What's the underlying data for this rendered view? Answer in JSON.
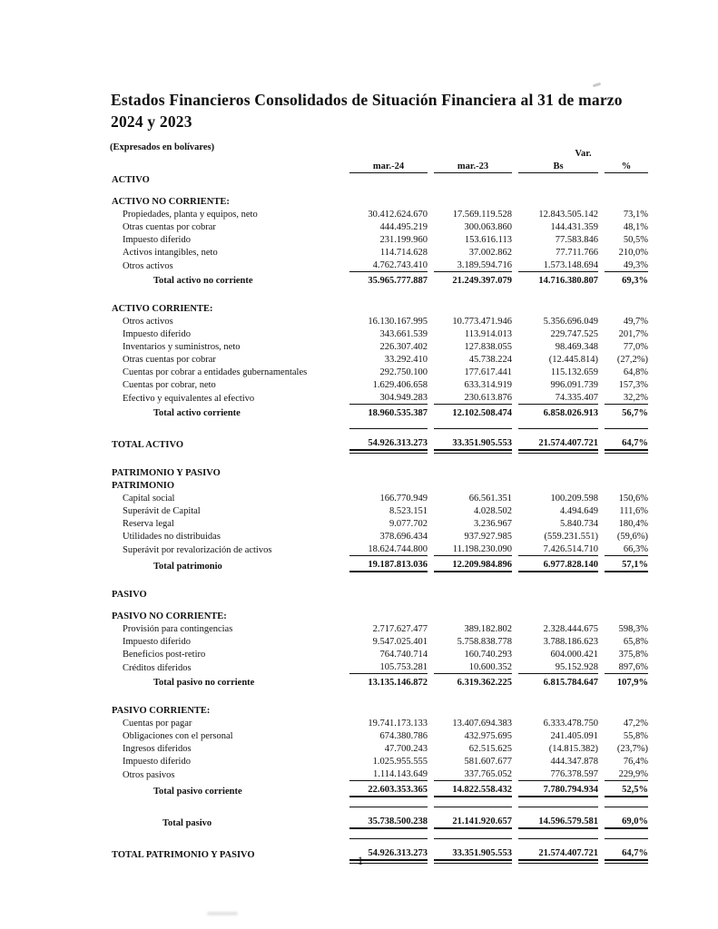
{
  "document": {
    "title": "Estados Financieros Consolidados de Situación Financiera al 31 de marzo 2024 y 2023",
    "subtitle": "(Expresados en bolívares)",
    "page_number": "1"
  },
  "colors": {
    "text": "#111111",
    "background": "#ffffff"
  },
  "table": {
    "var_label": "Var.",
    "columns": [
      "mar.-24",
      "mar.-23",
      "Bs",
      "%"
    ],
    "rows": [
      {
        "style": "section",
        "label": "ACTIVO"
      },
      {
        "style": "spacer"
      },
      {
        "style": "section",
        "label": "ACTIVO NO CORRIENTE:"
      },
      {
        "style": "item",
        "label": "Propiedades, planta y equipos, neto",
        "values": [
          "30.412.624.670",
          "17.569.119.528",
          "12.843.505.142",
          "73,1%"
        ]
      },
      {
        "style": "item",
        "label": "Otras cuentas por cobrar",
        "values": [
          "444.495.219",
          "300.063.860",
          "144.431.359",
          "48,1%"
        ]
      },
      {
        "style": "item",
        "label": "Impuesto diferido",
        "values": [
          "231.199.960",
          "153.616.113",
          "77.583.846",
          "50,5%"
        ]
      },
      {
        "style": "item",
        "label": "Activos intangibles, neto",
        "values": [
          "114.714.628",
          "37.002.862",
          "77.711.766",
          "210,0%"
        ]
      },
      {
        "style": "item_last",
        "label": "Otros activos",
        "values": [
          "4.762.743.410",
          "3.189.594.716",
          "1.573.148.694",
          "49,3%"
        ]
      },
      {
        "style": "subtotal",
        "label": "Total activo no corriente",
        "values": [
          "35.965.777.887",
          "21.249.397.079",
          "14.716.380.807",
          "69,3%"
        ]
      },
      {
        "style": "spacer_lg"
      },
      {
        "style": "section",
        "label": "ACTIVO CORRIENTE:"
      },
      {
        "style": "item",
        "label": "Otros activos",
        "values": [
          "16.130.167.995",
          "10.773.471.946",
          "5.356.696.049",
          "49,7%"
        ]
      },
      {
        "style": "item",
        "label": "Impuesto diferido",
        "values": [
          "343.661.539",
          "113.914.013",
          "229.747.525",
          "201,7%"
        ]
      },
      {
        "style": "item",
        "label": "Inventarios y suministros, neto",
        "values": [
          "226.307.402",
          "127.838.055",
          "98.469.348",
          "77,0%"
        ]
      },
      {
        "style": "item",
        "label": "Otras cuentas por cobrar",
        "values": [
          "33.292.410",
          "45.738.224",
          "(12.445.814)",
          "(27,2%)"
        ]
      },
      {
        "style": "item",
        "label": "Cuentas por cobrar a entidades gubernamentales",
        "values": [
          "292.750.100",
          "177.617.441",
          "115.132.659",
          "64,8%"
        ]
      },
      {
        "style": "item",
        "label": "Cuentas por cobrar, neto",
        "values": [
          "1.629.406.658",
          "633.314.919",
          "996.091.739",
          "157,3%"
        ]
      },
      {
        "style": "item_last",
        "label": "Efectivo y equivalentes al efectivo",
        "values": [
          "304.949.283",
          "230.613.876",
          "74.335.407",
          "32,2%"
        ]
      },
      {
        "style": "subtotal",
        "label": "Total activo corriente",
        "values": [
          "18.960.535.387",
          "12.102.508.474",
          "6.858.026.913",
          "56,7%"
        ]
      },
      {
        "style": "spacer"
      },
      {
        "style": "grand_total",
        "label": "TOTAL ACTIVO",
        "values": [
          "54.926.313.273",
          "33.351.905.553",
          "21.574.407.721",
          "64,7%"
        ]
      },
      {
        "style": "spacer_lg"
      },
      {
        "style": "section",
        "label": "PATRIMONIO Y PASIVO"
      },
      {
        "style": "section",
        "label": "PATRIMONIO"
      },
      {
        "style": "item",
        "label": "Capital social",
        "values": [
          "166.770.949",
          "66.561.351",
          "100.209.598",
          "150,6%"
        ]
      },
      {
        "style": "item",
        "label": "Superávit de Capital",
        "values": [
          "8.523.151",
          "4.028.502",
          "4.494.649",
          "111,6%"
        ]
      },
      {
        "style": "item",
        "label": "Reserva legal",
        "values": [
          "9.077.702",
          "3.236.967",
          "5.840.734",
          "180,4%"
        ]
      },
      {
        "style": "item",
        "label": "Utilidades no distribuidas",
        "values": [
          "378.696.434",
          "937.927.985",
          "(559.231.551)",
          "(59,6%)"
        ]
      },
      {
        "style": "item_last",
        "label": "Superávit por revalorización de activos",
        "values": [
          "18.624.744.800",
          "11.198.230.090",
          "7.426.514.710",
          "66,3%"
        ]
      },
      {
        "style": "subtotal_thick",
        "label": "Total patrimonio",
        "values": [
          "19.187.813.036",
          "12.209.984.896",
          "6.977.828.140",
          "57,1%"
        ]
      },
      {
        "style": "spacer_lg"
      },
      {
        "style": "section",
        "label": "PASIVO"
      },
      {
        "style": "spacer"
      },
      {
        "style": "section",
        "label": "PASIVO NO CORRIENTE:"
      },
      {
        "style": "item",
        "label": "Provisión para contingencias",
        "values": [
          "2.717.627.477",
          "389.182.802",
          "2.328.444.675",
          "598,3%"
        ]
      },
      {
        "style": "item",
        "label": "Impuesto diferido",
        "values": [
          "9.547.025.401",
          "5.758.838.778",
          "3.788.186.623",
          "65,8%"
        ]
      },
      {
        "style": "item",
        "label": "Beneficios post-retiro",
        "values": [
          "764.740.714",
          "160.740.293",
          "604.000.421",
          "375,8%"
        ]
      },
      {
        "style": "item_last",
        "label": "Créditos diferidos",
        "values": [
          "105.753.281",
          "10.600.352",
          "95.152.928",
          "897,6%"
        ]
      },
      {
        "style": "subtotal",
        "label": "Total pasivo no corriente",
        "values": [
          "13.135.146.872",
          "6.319.362.225",
          "6.815.784.647",
          "107,9%"
        ]
      },
      {
        "style": "spacer_lg"
      },
      {
        "style": "section",
        "label": "PASIVO CORRIENTE:"
      },
      {
        "style": "item",
        "label": "Cuentas por pagar",
        "values": [
          "19.741.173.133",
          "13.407.694.383",
          "6.333.478.750",
          "47,2%"
        ]
      },
      {
        "style": "item",
        "label": "Obligaciones con el personal",
        "values": [
          "674.380.786",
          "432.975.695",
          "241.405.091",
          "55,8%"
        ]
      },
      {
        "style": "item",
        "label": "Ingresos diferidos",
        "values": [
          "47.700.243",
          "62.515.625",
          "(14.815.382)",
          "(23,7%)"
        ]
      },
      {
        "style": "item",
        "label": "Impuesto diferido",
        "values": [
          "1.025.955.555",
          "581.607.677",
          "444.347.878",
          "76,4%"
        ]
      },
      {
        "style": "item_last",
        "label": "Otros pasivos",
        "values": [
          "1.114.143.649",
          "337.765.052",
          "776.378.597",
          "229,9%"
        ]
      },
      {
        "style": "subtotal_thick",
        "label": "Total pasivo corriente",
        "values": [
          "22.603.353.365",
          "14.822.558.432",
          "7.780.794.934",
          "52,5%"
        ]
      },
      {
        "style": "spacer"
      },
      {
        "style": "total_mid",
        "label": "Total pasivo",
        "values": [
          "35.738.500.238",
          "21.141.920.657",
          "14.596.579.581",
          "69,0%"
        ]
      },
      {
        "style": "spacer"
      },
      {
        "style": "grand_total",
        "label": "TOTAL PATRIMONIO Y PASIVO",
        "values": [
          "54.926.313.273",
          "33.351.905.553",
          "21.574.407.721",
          "64,7%"
        ]
      }
    ]
  }
}
